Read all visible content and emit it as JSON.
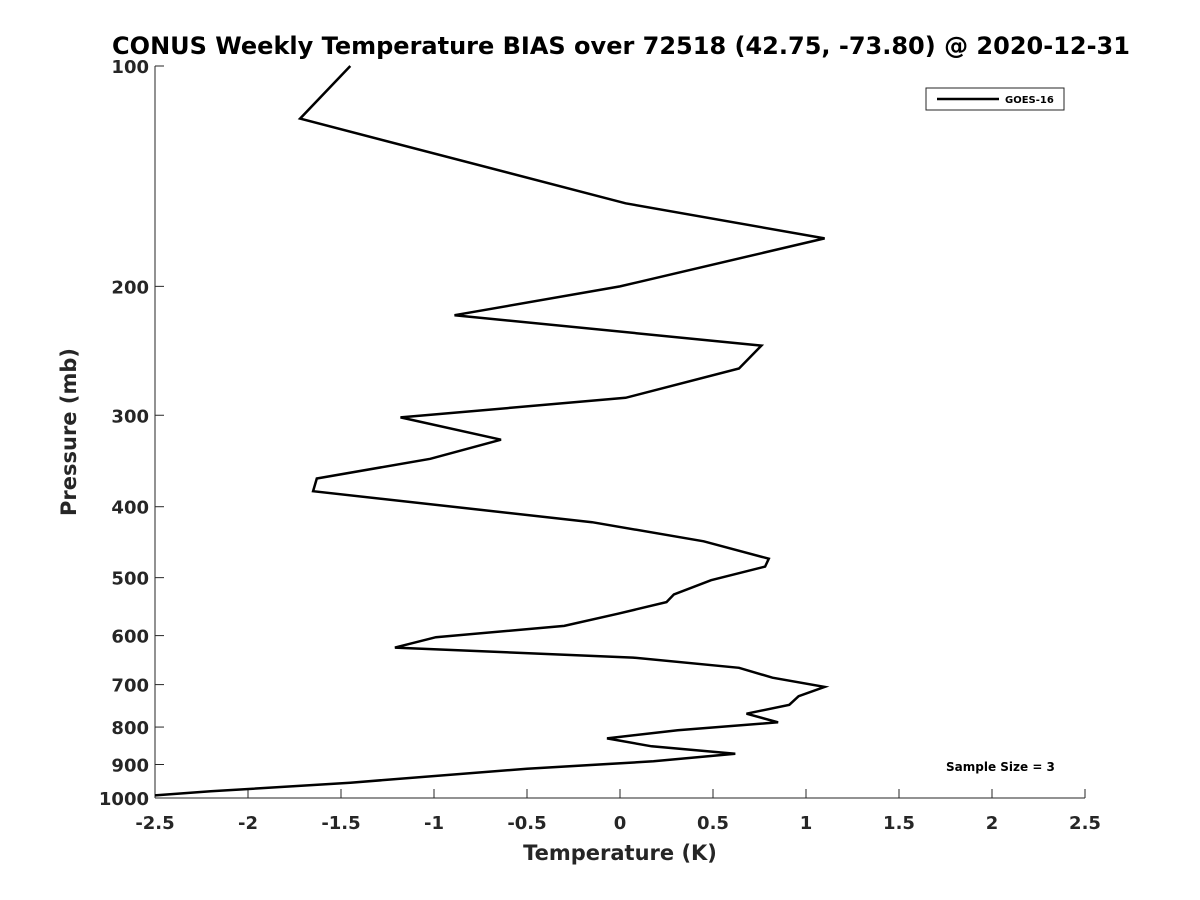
{
  "chart_data": {
    "type": "line",
    "title": "CONUS Weekly Temperature BIAS over 72518 (42.75, -73.80) @ 2020-12-31",
    "xlabel": "Temperature (K)",
    "ylabel": "Pressure (mb)",
    "xlim": [
      -2.5,
      2.5
    ],
    "ylim": [
      1000,
      100
    ],
    "yscale": "log",
    "y_reversed": true,
    "grid": false,
    "x_ticks": [
      -2.5,
      -2,
      -1.5,
      -1,
      -0.5,
      0,
      0.5,
      1,
      1.5,
      2,
      2.5
    ],
    "x_tick_labels": [
      "-2.5",
      "-2",
      "-1.5",
      "-1",
      "-0.5",
      "0",
      "0.5",
      "1",
      "1.5",
      "2",
      "2.5"
    ],
    "y_ticks": [
      100,
      200,
      300,
      400,
      500,
      600,
      700,
      800,
      900,
      1000
    ],
    "y_tick_labels": [
      "100",
      "200",
      "300",
      "400",
      "500",
      "600",
      "700",
      "800",
      "900",
      "1000"
    ],
    "legend": {
      "placement": "top-right",
      "entries": [
        "GOES-16"
      ]
    },
    "annotation": "Sample Size = 3",
    "series": [
      {
        "name": "GOES-16",
        "color": "#000000",
        "points": [
          {
            "x": -1.45,
            "y": 100
          },
          {
            "x": -1.72,
            "y": 118
          },
          {
            "x": 0.03,
            "y": 154
          },
          {
            "x": 1.1,
            "y": 172
          },
          {
            "x": 0.0,
            "y": 200
          },
          {
            "x": -0.89,
            "y": 219
          },
          {
            "x": 0.76,
            "y": 241
          },
          {
            "x": 0.64,
            "y": 259
          },
          {
            "x": 0.03,
            "y": 284
          },
          {
            "x": -1.18,
            "y": 302
          },
          {
            "x": -0.64,
            "y": 324
          },
          {
            "x": -1.02,
            "y": 344
          },
          {
            "x": -1.63,
            "y": 366
          },
          {
            "x": -1.65,
            "y": 381
          },
          {
            "x": -0.15,
            "y": 420
          },
          {
            "x": 0.45,
            "y": 446
          },
          {
            "x": 0.8,
            "y": 471
          },
          {
            "x": 0.78,
            "y": 483
          },
          {
            "x": 0.49,
            "y": 504
          },
          {
            "x": 0.29,
            "y": 527
          },
          {
            "x": 0.25,
            "y": 540
          },
          {
            "x": -0.01,
            "y": 560
          },
          {
            "x": -0.3,
            "y": 582
          },
          {
            "x": -0.99,
            "y": 603
          },
          {
            "x": -1.21,
            "y": 623
          },
          {
            "x": 0.07,
            "y": 643
          },
          {
            "x": 0.64,
            "y": 664
          },
          {
            "x": 0.82,
            "y": 685
          },
          {
            "x": 1.1,
            "y": 705
          },
          {
            "x": 0.96,
            "y": 726
          },
          {
            "x": 0.91,
            "y": 746
          },
          {
            "x": 0.68,
            "y": 767
          },
          {
            "x": 0.85,
            "y": 788
          },
          {
            "x": 0.31,
            "y": 808
          },
          {
            "x": -0.07,
            "y": 829
          },
          {
            "x": 0.17,
            "y": 850
          },
          {
            "x": 0.62,
            "y": 870
          },
          {
            "x": 0.18,
            "y": 891
          },
          {
            "x": -0.5,
            "y": 912
          },
          {
            "x": -1.45,
            "y": 953
          },
          {
            "x": -2.2,
            "y": 979
          },
          {
            "x": -2.5,
            "y": 992
          }
        ]
      }
    ]
  }
}
